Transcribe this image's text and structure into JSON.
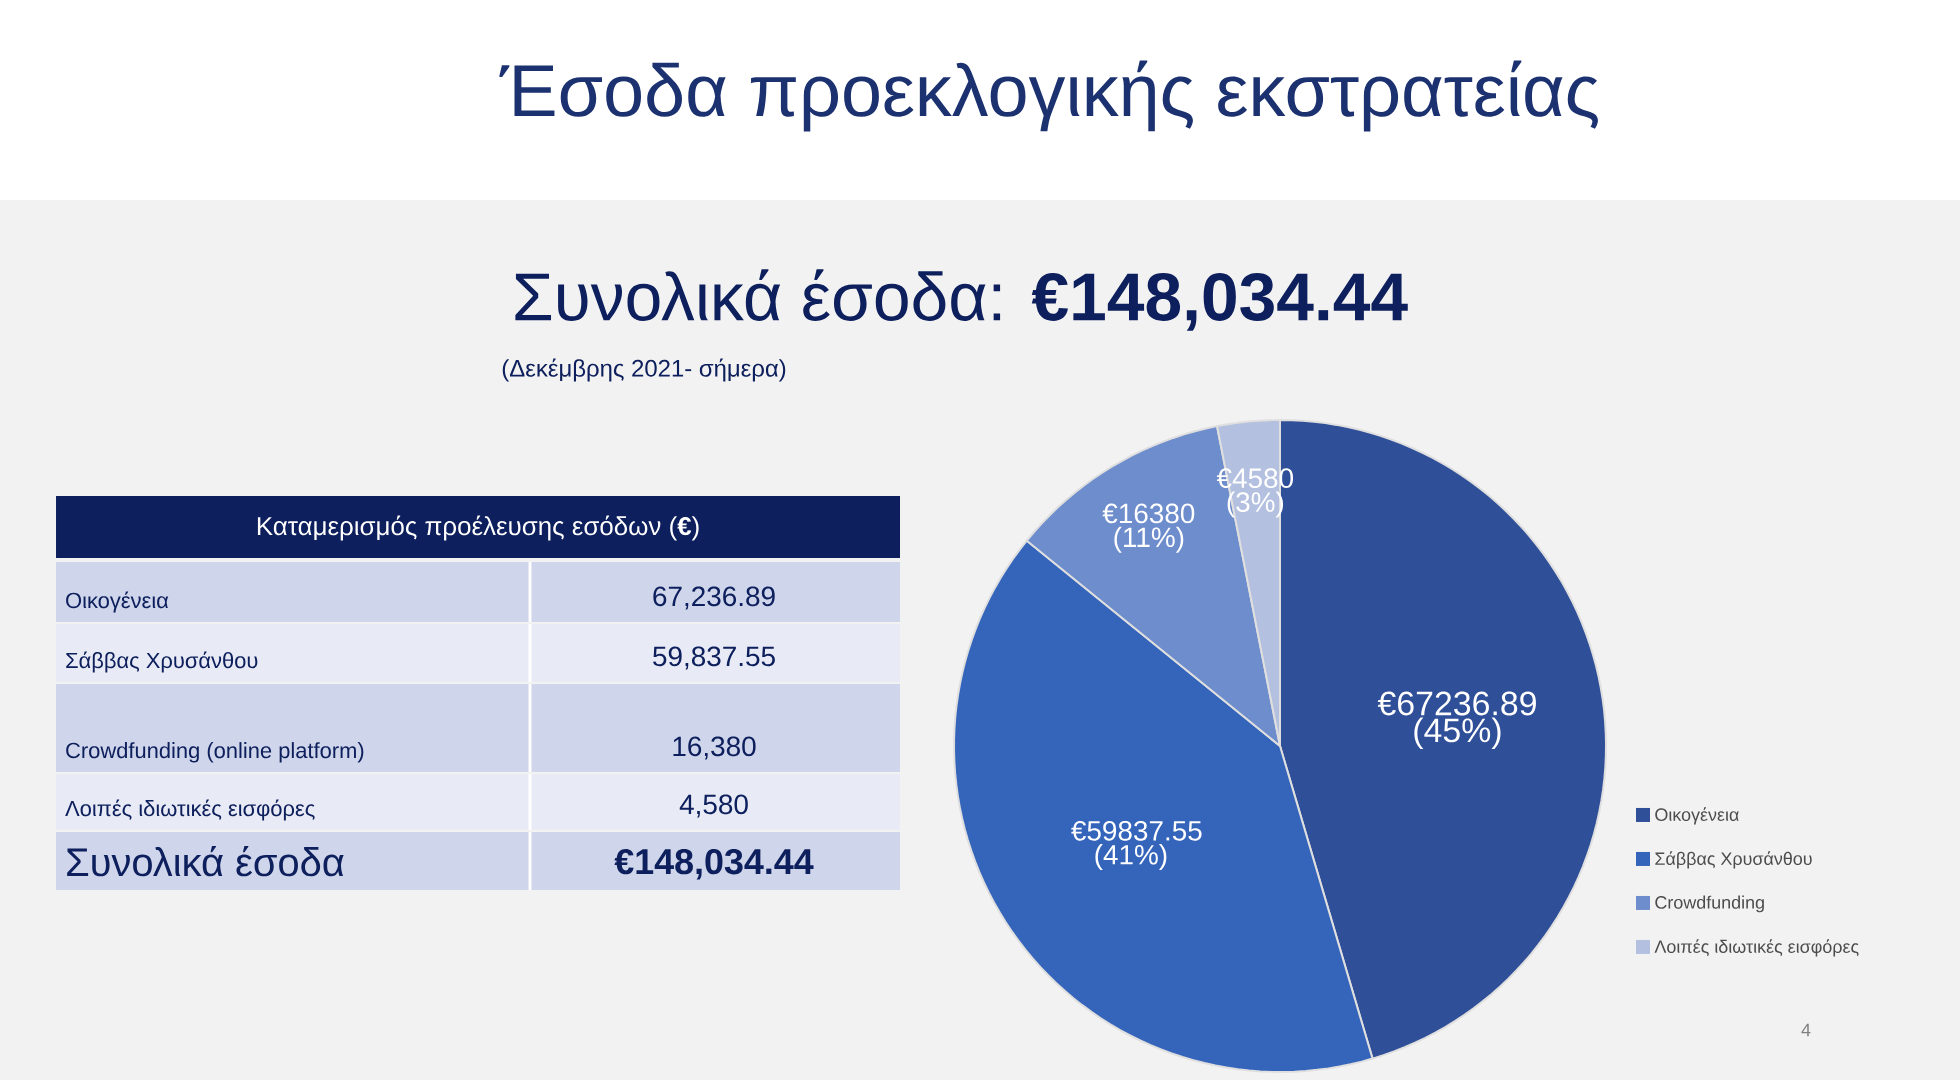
{
  "chart_data": {
    "type": "pie",
    "title": "Έσοδα προεκλογικής εκστρατείας",
    "subtitle": "Συνολικά έσοδα: **€148,034.44**",
    "categories": [
      "Οικογένεια",
      "Σάββας Χρυσάνθου",
      "Crowdfunding",
      "Λοιπές ιδιωτικές εισφόρες"
    ],
    "values": [
      67236.89,
      59837.55,
      16380,
      4580
    ],
    "colors": [
      "#2f4f98",
      "#3565bb",
      "#6e8dcc",
      "#b3c0e0"
    ],
    "value_labels": [
      "€67236.89 (45%)",
      "€59837.55 (41%)",
      "€16380 (11%)",
      "€4580 (3%)"
    ],
    "legend": "right",
    "annotations": [
      "(Δεκέμβρης 2021- σήμερα)",
      "Καταμερισμός προέλευσης εσόδων (**€**)",
      "Οικογένεια",
      "67,236.89",
      "Σάββας Χρυσάνθου",
      "59,837.55",
      "Crowdfunding (online platform)",
      "16,380",
      "Λοιπές ιδιωτικές εισφόρες",
      "4,580",
      "Συνολικά έσοδα",
      "**€148,034.44**",
      "4"
    ]
  }
}
